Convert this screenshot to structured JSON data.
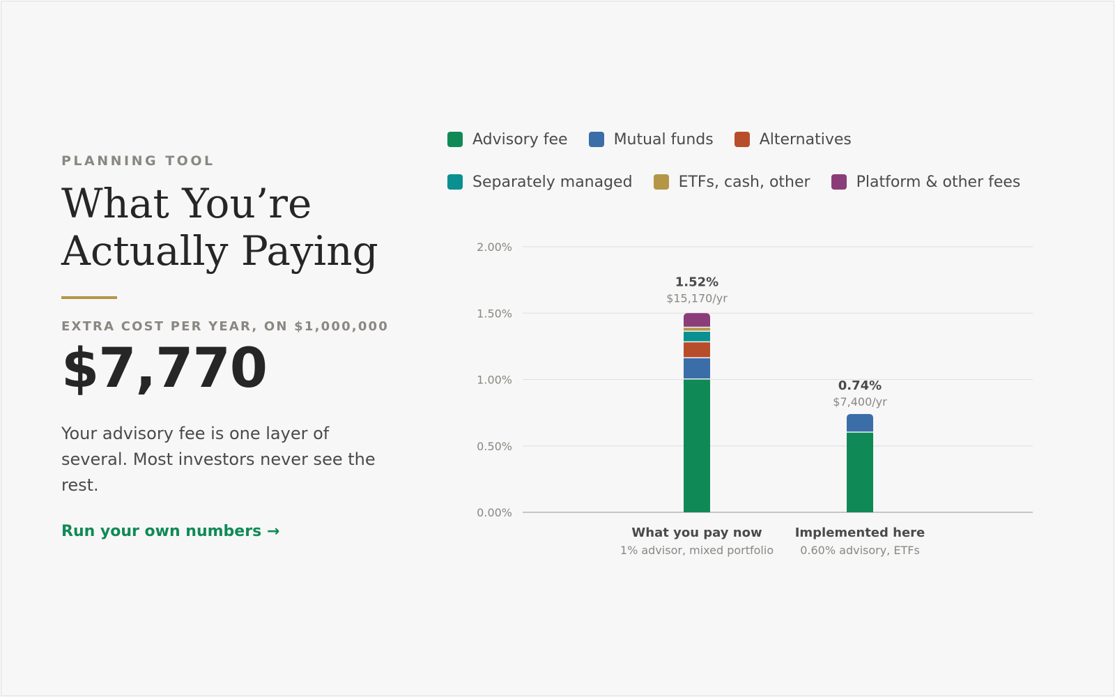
{
  "theme": {
    "accent_green": "#0f8a56",
    "accent_gold": "#b59647",
    "text_dark": "#262626",
    "text_muted": "#8a8782",
    "background": "#f7f7f7"
  },
  "left": {
    "eyebrow": "PLANNING TOOL",
    "title_line1": "What You’re",
    "title_line2": "Actually Paying",
    "cost_label": "EXTRA COST PER YEAR, ON $1,000,000",
    "cost_value": "$7,770",
    "description": "Your advisory fee is one layer of several. Most investors never see the rest.",
    "cta_label": "Run your own numbers →"
  },
  "chart_data": {
    "type": "bar",
    "stacked": true,
    "categories": [
      "What you pay now",
      "Implemented here"
    ],
    "category_subtitles": [
      "1% advisor, mixed portfolio",
      "0.60% advisory, ETFs"
    ],
    "totals": [
      "1.52%",
      "0.74%"
    ],
    "total_values": [
      1.52,
      0.74
    ],
    "annual_costs": [
      "$15,170/yr",
      "$7,400/yr"
    ],
    "series": [
      {
        "name": "Advisory fee",
        "color": "#0f8a56",
        "values": [
          1.0,
          0.6
        ]
      },
      {
        "name": "Mutual funds",
        "color": "#3b6ea8",
        "values": [
          0.16,
          0.14
        ]
      },
      {
        "name": "Alternatives",
        "color": "#b84d2c",
        "values": [
          0.12,
          0
        ]
      },
      {
        "name": "Separately managed",
        "color": "#0a9090",
        "values": [
          0.08,
          0
        ]
      },
      {
        "name": "ETFs, cash, other",
        "color": "#b59647",
        "values": [
          0.03,
          0
        ]
      },
      {
        "name": "Platform & other fees",
        "color": "#8a3d78",
        "values": [
          0.11,
          0
        ]
      }
    ],
    "yticks": [
      "0.00%",
      "0.50%",
      "1.00%",
      "1.50%",
      "2.00%"
    ],
    "ylim": [
      0,
      2.0
    ],
    "grid": true,
    "legend_position": "top"
  }
}
